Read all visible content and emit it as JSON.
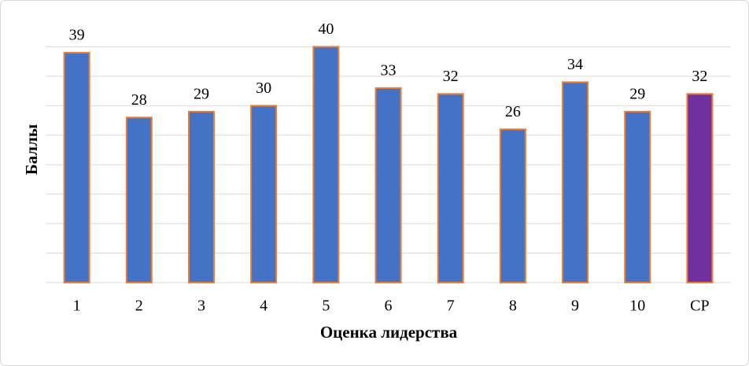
{
  "chart_data": {
    "type": "bar",
    "x_label": "Оценка лидерства",
    "y_label": "Баллы",
    "categories": [
      "1",
      "2",
      "3",
      "4",
      "5",
      "6",
      "7",
      "8",
      "9",
      "10",
      "СР"
    ],
    "values": [
      39,
      28,
      29,
      30,
      40,
      33,
      32,
      26,
      34,
      29,
      32
    ],
    "colors": [
      "#4472c4",
      "#4472c4",
      "#4472c4",
      "#4472c4",
      "#4472c4",
      "#4472c4",
      "#4472c4",
      "#4472c4",
      "#4472c4",
      "#4472c4",
      "#7030a0"
    ],
    "edge_color": "#ed7d31",
    "ylim": [
      0,
      45
    ],
    "yticks": [
      0,
      5,
      10,
      15,
      20,
      25,
      30,
      35,
      40
    ],
    "grid": true
  }
}
